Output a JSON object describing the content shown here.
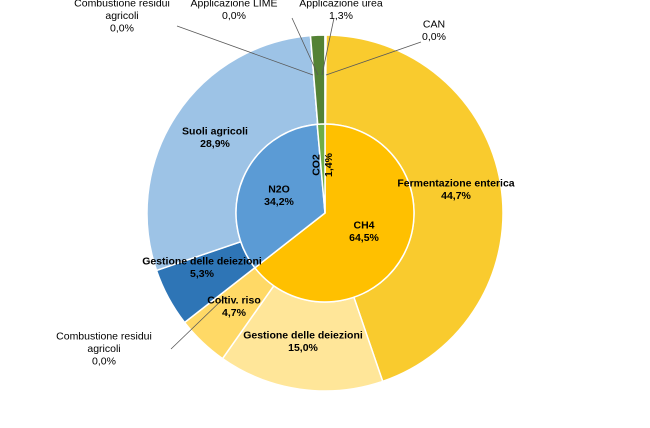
{
  "chart_data": {
    "type": "pie",
    "variant": "nested-donut",
    "inner_ring": [
      {
        "name": "CH4",
        "value_label": "64,5%",
        "value": 64.5,
        "color": "#FFC000"
      },
      {
        "name": "N2O",
        "value_label": "34,2%",
        "value": 34.2,
        "color": "#5B9BD5"
      },
      {
        "name": "CO2",
        "value_label": "1,4%",
        "value": 1.4,
        "color": "#70AD47"
      }
    ],
    "outer_ring": [
      {
        "name": "Fermentazione enterica",
        "value_label": "44,7%",
        "value": 44.7,
        "color": "#F9CB2E",
        "group": "CH4"
      },
      {
        "name": "Gestione delle deiezioni",
        "value_label": "15,0%",
        "value": 15.0,
        "color": "#FFE699",
        "group": "CH4"
      },
      {
        "name": "Coltiv. riso",
        "value_label": "4,7%",
        "value": 4.7,
        "color": "#FFD966",
        "group": "CH4"
      },
      {
        "name": "Combustione residui agricoli",
        "value_label": "0,0%",
        "value": 0.0,
        "color": "#FFE699",
        "group": "CH4"
      },
      {
        "name": "Gestione delle deiezioni",
        "value_label": "5,3%",
        "value": 5.3,
        "color": "#2E75B6",
        "group": "N2O"
      },
      {
        "name": "Suoli agricoli",
        "value_label": "28,9%",
        "value": 28.9,
        "color": "#9DC3E6",
        "group": "N2O"
      },
      {
        "name": "Combustione residui agricoli",
        "value_label": "0,0%",
        "value": 0.0,
        "color": "#9DC3E6",
        "group": "N2O"
      },
      {
        "name": "Applicazione LIME",
        "value_label": "0,0%",
        "value": 0.0,
        "color": "#70AD47",
        "group": "CO2"
      },
      {
        "name": "Applicazione urea",
        "value_label": "1,3%",
        "value": 1.3,
        "color": "#548235",
        "group": "CO2"
      },
      {
        "name": "CAN",
        "value_label": "0,0%",
        "value": 0.0,
        "color": "#70AD47",
        "group": "CO2"
      }
    ],
    "start_angle": "12 o'clock",
    "direction": "clockwise",
    "legend": "none"
  }
}
